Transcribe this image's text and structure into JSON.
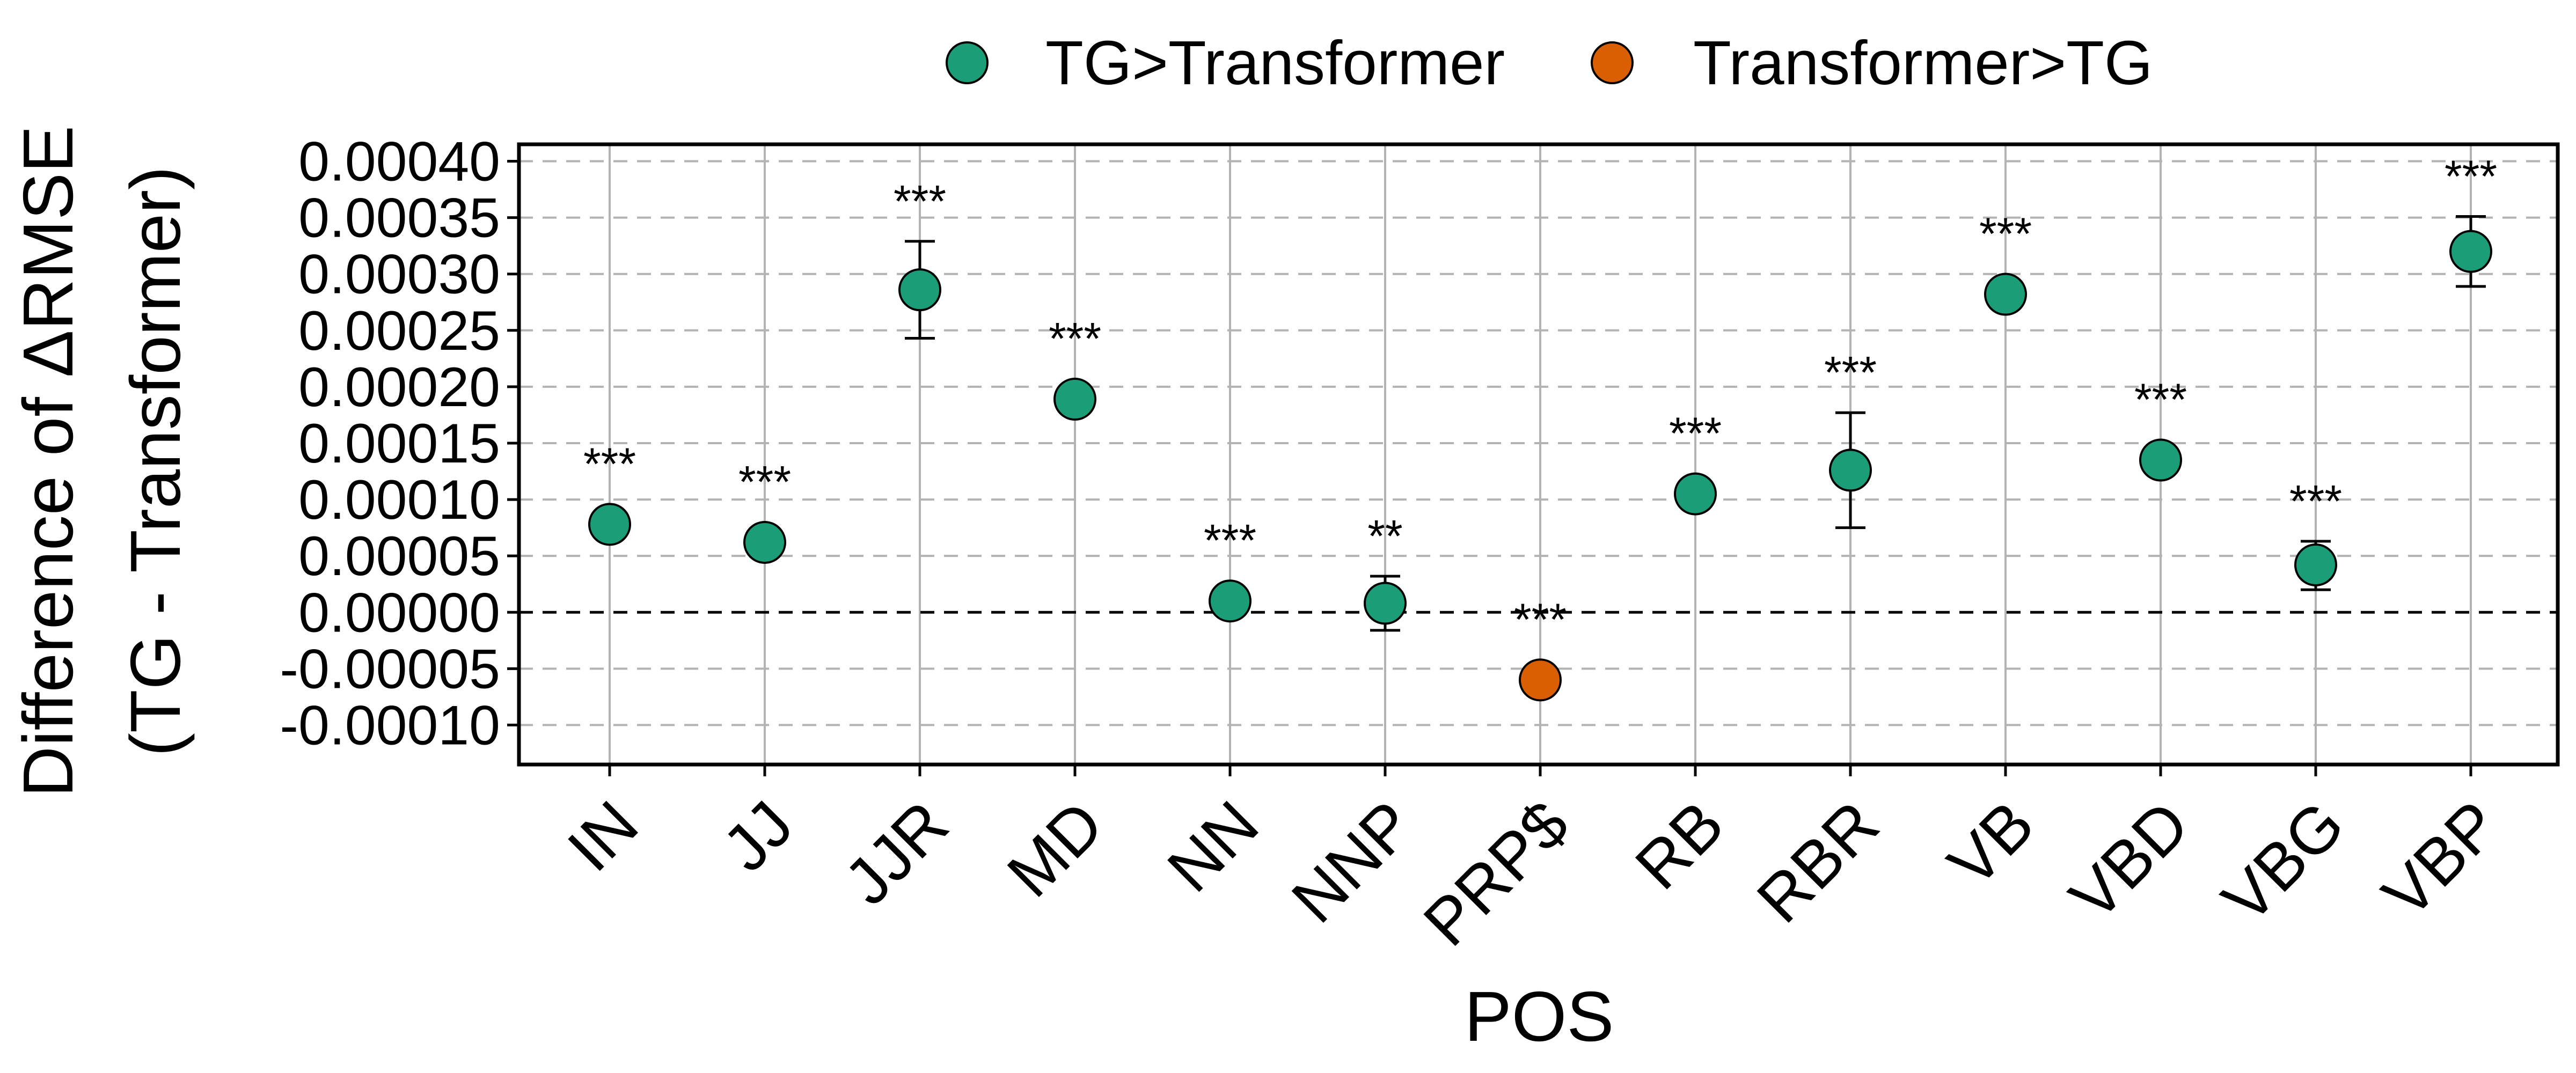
{
  "colors": {
    "tg_better": "#1b9e77",
    "transformer_better": "#d95f02",
    "grid": "#b3b3b3",
    "axis": "#000000"
  },
  "legend": {
    "items": [
      {
        "label": "TG>Transformer",
        "color": "#1b9e77"
      },
      {
        "label": "Transformer>TG",
        "color": "#d95f02"
      }
    ]
  },
  "chart_data": {
    "type": "scatter",
    "title": "",
    "xlabel": "POS",
    "ylabel_line1": "Difference of ΔRMSE",
    "ylabel_line2": "(TG - Transformer)",
    "ylim": [
      -0.000135,
      0.000415
    ],
    "yticks": [
      {
        "value": 0.0004,
        "label": "0.00040"
      },
      {
        "value": 0.00035,
        "label": "0.00035"
      },
      {
        "value": 0.0003,
        "label": "0.00030"
      },
      {
        "value": 0.00025,
        "label": "0.00025"
      },
      {
        "value": 0.0002,
        "label": "0.00020"
      },
      {
        "value": 0.00015,
        "label": "0.00015"
      },
      {
        "value": 0.0001,
        "label": "0.00010"
      },
      {
        "value": 5e-05,
        "label": "0.00005"
      },
      {
        "value": 0.0,
        "label": "0.00000"
      },
      {
        "value": -5e-05,
        "label": "-0.00005"
      },
      {
        "value": -0.0001,
        "label": "-0.00010"
      }
    ],
    "reference_line": 0,
    "categories": [
      "IN",
      "JJ",
      "JJR",
      "MD",
      "NN",
      "NNP",
      "PRP$",
      "RB",
      "RBR",
      "VB",
      "VBD",
      "VBG",
      "VBP"
    ],
    "points": [
      {
        "pos": "IN",
        "value": 7.8e-05,
        "lower": 7.4e-05,
        "upper": 8.2e-05,
        "sig": "***",
        "group": "TG>Transformer"
      },
      {
        "pos": "JJ",
        "value": 6.2e-05,
        "lower": 5.8e-05,
        "upper": 6.6e-05,
        "sig": "***",
        "group": "TG>Transformer"
      },
      {
        "pos": "JJR",
        "value": 0.000286,
        "lower": 0.000243,
        "upper": 0.000329,
        "sig": "***",
        "group": "TG>Transformer"
      },
      {
        "pos": "MD",
        "value": 0.000189,
        "lower": 0.000181,
        "upper": 0.000197,
        "sig": "***",
        "group": "TG>Transformer"
      },
      {
        "pos": "NN",
        "value": 1e-05,
        "lower": 7e-06,
        "upper": 1.3e-05,
        "sig": "***",
        "group": "TG>Transformer"
      },
      {
        "pos": "NNP",
        "value": 8e-06,
        "lower": -1.6e-05,
        "upper": 3.2e-05,
        "sig": "**",
        "group": "TG>Transformer"
      },
      {
        "pos": "PRP$",
        "value": -6e-05,
        "lower": -6.4e-05,
        "upper": -5.6e-05,
        "sig": "***",
        "group": "Transformer>TG"
      },
      {
        "pos": "RB",
        "value": 0.000105,
        "lower": 0.000101,
        "upper": 0.000109,
        "sig": "***",
        "group": "TG>Transformer"
      },
      {
        "pos": "RBR",
        "value": 0.000126,
        "lower": 7.5e-05,
        "upper": 0.000177,
        "sig": "***",
        "group": "TG>Transformer"
      },
      {
        "pos": "VB",
        "value": 0.000282,
        "lower": 0.000278,
        "upper": 0.000286,
        "sig": "***",
        "group": "TG>Transformer"
      },
      {
        "pos": "VBD",
        "value": 0.000135,
        "lower": 0.000131,
        "upper": 0.000139,
        "sig": "***",
        "group": "TG>Transformer"
      },
      {
        "pos": "VBG",
        "value": 4.2e-05,
        "lower": 2e-05,
        "upper": 6.3e-05,
        "sig": "***",
        "group": "TG>Transformer"
      },
      {
        "pos": "VBP",
        "value": 0.00032,
        "lower": 0.000289,
        "upper": 0.000351,
        "sig": "***",
        "group": "TG>Transformer"
      }
    ],
    "grid": true,
    "legend_position": "top"
  }
}
